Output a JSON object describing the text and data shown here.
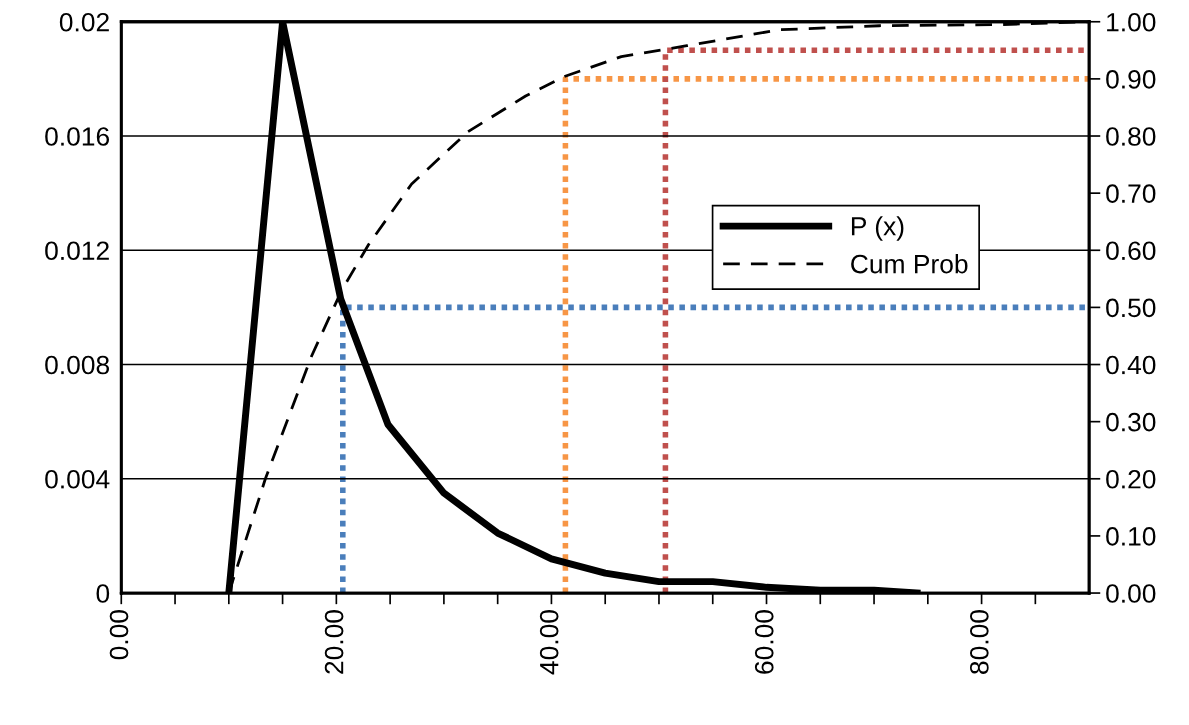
{
  "chart_data": {
    "type": "line",
    "xlim": [
      0,
      90
    ],
    "xticks": [
      {
        "value": 0,
        "label": "0.00"
      },
      {
        "value": 5,
        "label": null
      },
      {
        "value": 10,
        "label": null
      },
      {
        "value": 15,
        "label": null
      },
      {
        "value": 20,
        "label": "20.00"
      },
      {
        "value": 25,
        "label": null
      },
      {
        "value": 30,
        "label": null
      },
      {
        "value": 35,
        "label": null
      },
      {
        "value": 40,
        "label": "40.00"
      },
      {
        "value": 45,
        "label": null
      },
      {
        "value": 50,
        "label": null
      },
      {
        "value": 55,
        "label": null
      },
      {
        "value": 60,
        "label": "60.00"
      },
      {
        "value": 65,
        "label": null
      },
      {
        "value": 70,
        "label": null
      },
      {
        "value": 75,
        "label": null
      },
      {
        "value": 80,
        "label": "80.00"
      },
      {
        "value": 85,
        "label": null
      }
    ],
    "ylim": [
      0,
      0.02
    ],
    "yticks": [
      0,
      0.004,
      0.008,
      0.012,
      0.016,
      0.02
    ],
    "y2lim": [
      0,
      1
    ],
    "y2ticks": [
      {
        "value": 0,
        "label": "0.00"
      },
      {
        "value": 0.1,
        "label": "0.10"
      },
      {
        "value": 0.2,
        "label": "0.20"
      },
      {
        "value": 0.3,
        "label": "0.30"
      },
      {
        "value": 0.4,
        "label": "0.40"
      },
      {
        "value": 0.5,
        "label": "0.50"
      },
      {
        "value": 0.6,
        "label": "0.60"
      },
      {
        "value": 0.7,
        "label": "0.70"
      },
      {
        "value": 0.8,
        "label": "0.80"
      },
      {
        "value": 0.9,
        "label": "0.90"
      },
      {
        "value": 1,
        "label": "1.00"
      }
    ],
    "grid": "y",
    "legend": "center right",
    "marker": "none",
    "series": [
      {
        "name": "P (x)",
        "color": "#000000",
        "line_style": "solid",
        "x": [
          10,
          15,
          20.4,
          24.8,
          30,
          35,
          40,
          45,
          50,
          55,
          60,
          65,
          70,
          74
        ],
        "values": [
          0,
          0.02,
          0.0103,
          0.0059,
          0.0035,
          0.0021,
          0.0012,
          0.0007,
          0.0004,
          0.0004,
          0.0002,
          0.0001,
          0.0001,
          0
        ]
      },
      {
        "name": "Cum Prob",
        "color": "#000000",
        "line_style": "dashed",
        "axis": "y2",
        "x": [
          10,
          13.4,
          17.7,
          20.5,
          23,
          27,
          32.2,
          37.6,
          41.2,
          46.5,
          52.6,
          61.2,
          70.5,
          81.7,
          90
        ],
        "values": [
          0,
          0.2,
          0.415,
          0.53,
          0.61,
          0.716,
          0.807,
          0.87,
          0.904,
          0.939,
          0.958,
          0.986,
          0.993,
          0.995,
          1.0
        ]
      },
      {
        "color": "#4a7ebb",
        "line_style": "dotted",
        "axis": "y2",
        "x": [
          20.6,
          20.6,
          90
        ],
        "values": [
          0,
          0.5,
          0.5
        ]
      },
      {
        "color": "#f79646",
        "line_style": "dotted",
        "axis": "y2",
        "x": [
          41.3,
          41.3,
          90
        ],
        "values": [
          0,
          0.9,
          0.9
        ]
      },
      {
        "color": "#c0504d",
        "line_style": "dotted",
        "axis": "y2",
        "x": [
          50.6,
          50.6,
          90
        ],
        "values": [
          0,
          0.95,
          0.95
        ]
      }
    ]
  }
}
